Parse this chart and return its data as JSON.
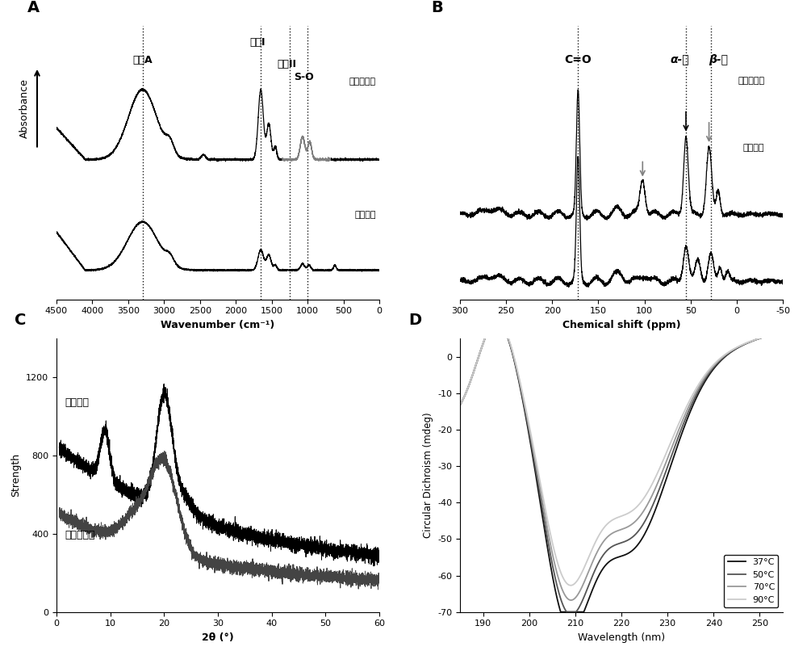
{
  "panel_A": {
    "label": "A",
    "xlabel": "Wavenumber (cm⁻¹)",
    "ylabel": "Absorbance",
    "xlim": [
      4500,
      0
    ],
    "vlines": [
      3300,
      1650,
      1250,
      1000
    ],
    "label1": "再生角蛋白",
    "label2": "羊毛纤维",
    "ann_amideA": "酰胺A",
    "ann_amideI": "酰胺I",
    "ann_amideII": "酰胺II",
    "ann_SO": "S-O"
  },
  "panel_B": {
    "label": "B",
    "xlabel": "Chemical shift (ppm)",
    "xlim": [
      300,
      -50
    ],
    "vlines": [
      172,
      55,
      28
    ],
    "label1": "再生角蛋白",
    "label2": "羊毛纤维",
    "ann_CO": "C=O",
    "ann_alpha": "α-碘",
    "ann_beta": "β-碘"
  },
  "panel_C": {
    "label": "C",
    "xlabel": "2θ (°)",
    "ylabel": "Strength",
    "xlim": [
      0,
      60
    ],
    "ylim": [
      0,
      1400
    ],
    "yticks": [
      0,
      400,
      800,
      1200
    ],
    "label1": "羊毛纤维",
    "label2": "再生角蛋白"
  },
  "panel_D": {
    "label": "D",
    "xlabel": "Wavelength (nm)",
    "ylabel": "Circular Dichroism (mdeg)",
    "xlim": [
      185,
      255
    ],
    "ylim": [
      -70,
      5
    ],
    "yticks": [
      0,
      -10,
      -20,
      -30,
      -40,
      -50,
      -60,
      -70
    ],
    "legend": [
      "37°C",
      "50°C",
      "70°C",
      "90°C"
    ],
    "colors": [
      "#111111",
      "#555555",
      "#999999",
      "#cccccc"
    ]
  }
}
